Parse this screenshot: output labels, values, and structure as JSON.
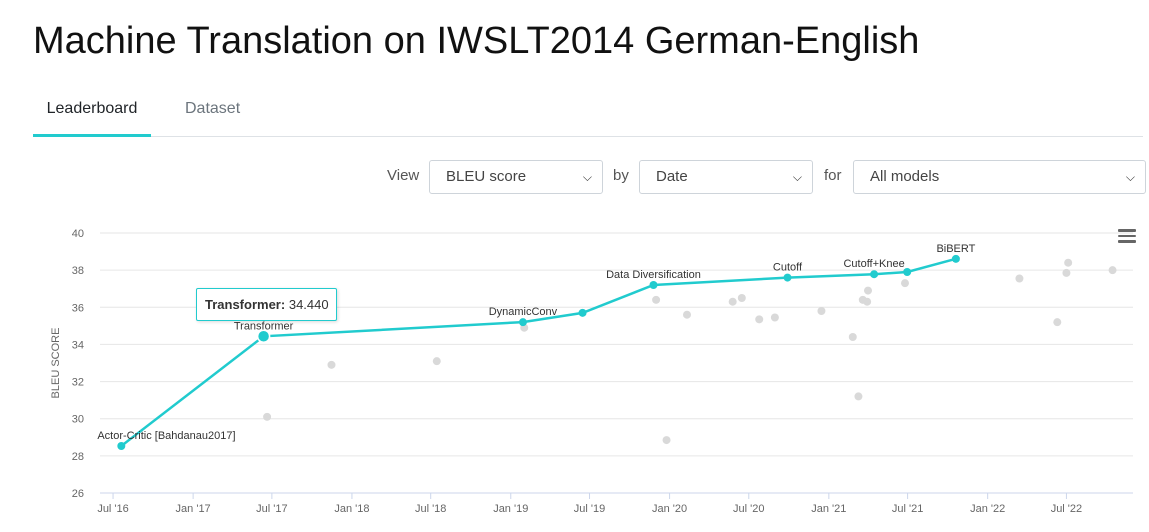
{
  "page": {
    "title": "Machine Translation on IWSLT2014 German-English"
  },
  "tabs": [
    {
      "label": "Leaderboard",
      "active": true
    },
    {
      "label": "Dataset",
      "active": false
    }
  ],
  "controls": {
    "view_label": "View",
    "view_value": "BLEU score",
    "by_label": "by",
    "by_value": "Date",
    "for_label": "for",
    "for_value": "All models"
  },
  "icons": {
    "menu": "hamburger-menu-icon",
    "dropdown": "chevron-down-icon"
  },
  "colors": {
    "accent": "#21cbce",
    "other_points": "#d9d9d9",
    "grid": "#e6e6e6"
  },
  "tooltip": {
    "name": "Transformer",
    "value": "34.440"
  },
  "chart_data": {
    "type": "scatter",
    "ylabel": "BLEU SCORE",
    "xlabel": "",
    "ylim": [
      26,
      40
    ],
    "yticks": [
      26,
      28,
      30,
      32,
      34,
      36,
      38,
      40
    ],
    "x_range": [
      "2016-06-01",
      "2022-12-01"
    ],
    "xtick_labels": [
      "Jul '16",
      "Jan '17",
      "Jul '17",
      "Jan '18",
      "Jul '18",
      "Jan '19",
      "Jul '19",
      "Jan '20",
      "Jul '20",
      "Jan '21",
      "Jul '21",
      "Jan '22",
      "Jul '22"
    ],
    "xtick_dates": [
      "2016-07-01",
      "2017-01-01",
      "2017-07-01",
      "2018-01-01",
      "2018-07-01",
      "2019-01-01",
      "2019-07-01",
      "2020-01-01",
      "2020-07-01",
      "2021-01-01",
      "2021-07-01",
      "2022-01-01",
      "2022-07-01"
    ],
    "grid": true,
    "sota_series": [
      {
        "date": "2016-07-20",
        "value": 28.53,
        "label": "Actor-Critic [Bahdanau2017]"
      },
      {
        "date": "2017-06-12",
        "value": 34.44,
        "label": "Transformer"
      },
      {
        "date": "2019-01-29",
        "value": 35.2,
        "label": "DynamicConv"
      },
      {
        "date": "2019-06-15",
        "value": 35.7,
        "label": ""
      },
      {
        "date": "2019-11-25",
        "value": 37.2,
        "label": "Data Diversification"
      },
      {
        "date": "2020-09-28",
        "value": 37.6,
        "label": "Cutoff"
      },
      {
        "date": "2021-04-15",
        "value": 37.78,
        "label": "Cutoff+Knee"
      },
      {
        "date": "2021-06-30",
        "value": 37.9,
        "label": ""
      },
      {
        "date": "2021-10-20",
        "value": 38.61,
        "label": "BiBERT"
      }
    ],
    "other_points": [
      {
        "date": "2017-06-20",
        "value": 30.1
      },
      {
        "date": "2017-11-15",
        "value": 32.9
      },
      {
        "date": "2018-07-15",
        "value": 33.1
      },
      {
        "date": "2019-02-01",
        "value": 34.9
      },
      {
        "date": "2019-12-01",
        "value": 36.4
      },
      {
        "date": "2019-12-25",
        "value": 28.85
      },
      {
        "date": "2020-02-10",
        "value": 35.6
      },
      {
        "date": "2020-05-25",
        "value": 36.3
      },
      {
        "date": "2020-06-15",
        "value": 36.5
      },
      {
        "date": "2020-07-25",
        "value": 35.35
      },
      {
        "date": "2020-08-30",
        "value": 35.45
      },
      {
        "date": "2020-12-15",
        "value": 35.8
      },
      {
        "date": "2021-02-25",
        "value": 34.4
      },
      {
        "date": "2021-03-10",
        "value": 31.2
      },
      {
        "date": "2021-03-20",
        "value": 36.4
      },
      {
        "date": "2021-03-30",
        "value": 36.3
      },
      {
        "date": "2021-04-01",
        "value": 36.9
      },
      {
        "date": "2021-06-25",
        "value": 37.3
      },
      {
        "date": "2022-03-15",
        "value": 37.55
      },
      {
        "date": "2022-06-10",
        "value": 35.2
      },
      {
        "date": "2022-07-01",
        "value": 37.85
      },
      {
        "date": "2022-07-05",
        "value": 38.4
      },
      {
        "date": "2022-10-15",
        "value": 38.0
      }
    ]
  }
}
